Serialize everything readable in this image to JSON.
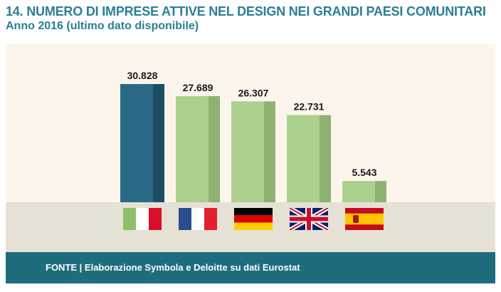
{
  "title": "14. NUMERO DI IMPRESE ATTIVE NEL DESIGN NEI GRANDI PAESI COMUNITARI",
  "subtitle": "Anno 2016 (ultimo dato disponibile)",
  "footer": "FONTE | Elaborazione Symbola e Deloitte su dati Eurostat",
  "colors": {
    "highlight": "#2a6a86",
    "highlight_side": "#1d4e66",
    "bar": "#acd08d",
    "bar_side": "#8fb272",
    "chart_bg": "#fcf5ec",
    "floor": "#e5e1d5",
    "footer": "#1e6d7e",
    "title": "#2a7f95"
  },
  "chart_data": {
    "type": "bar",
    "categories": [
      "italy-flag",
      "france-flag",
      "germany-flag",
      "uk-flag",
      "spain-flag"
    ],
    "values": [
      30828,
      27689,
      26307,
      22731,
      5543
    ],
    "value_labels": [
      "30.828",
      "27.689",
      "26.307",
      "22.731",
      "5.543"
    ],
    "highlight_index": 0,
    "ylim": [
      0,
      32000
    ],
    "grid": false,
    "legend": "none"
  }
}
